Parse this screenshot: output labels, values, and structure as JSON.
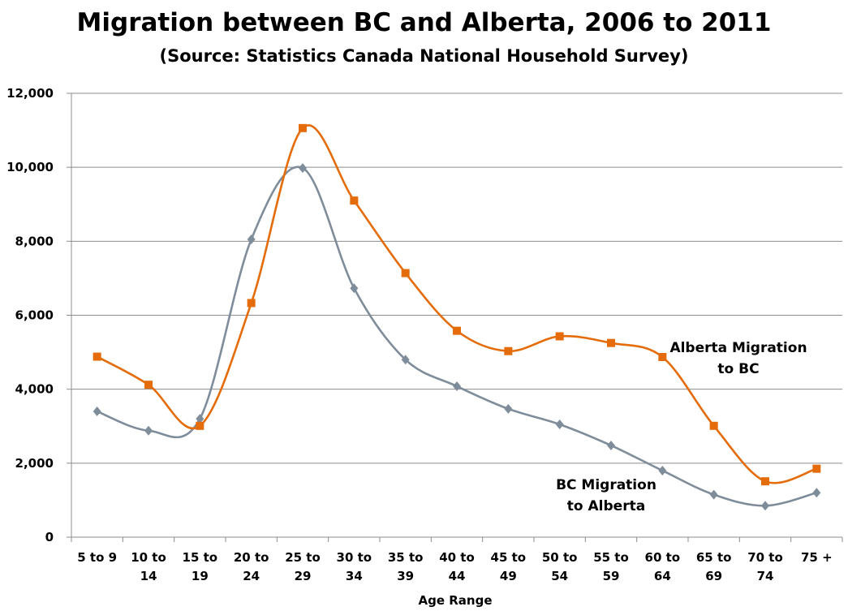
{
  "chart_data": {
    "type": "line",
    "title": "Migration between BC and Alberta, 2006 to 2011",
    "subtitle": "(Source: Statistics Canada National Household Survey)",
    "xlabel": "Age Range",
    "ylabel": "",
    "ylim": [
      0,
      12000
    ],
    "yticks": [
      "0",
      "2,000",
      "4,000",
      "6,000",
      "8,000",
      "10,000",
      "12,000"
    ],
    "grid": true,
    "categories": [
      [
        "5 to 9"
      ],
      [
        "10 to",
        "14"
      ],
      [
        "15 to",
        "19"
      ],
      [
        "20 to",
        "24"
      ],
      [
        "25 to",
        "29"
      ],
      [
        "30 to",
        "34"
      ],
      [
        "35 to",
        "39"
      ],
      [
        "40 to",
        "44"
      ],
      [
        "45 to",
        "49"
      ],
      [
        "50 to",
        "54"
      ],
      [
        "55 to",
        "59"
      ],
      [
        "60 to",
        "64"
      ],
      [
        "65 to",
        "69"
      ],
      [
        "70 to",
        "74"
      ],
      [
        "75 +"
      ]
    ],
    "series": [
      {
        "name": "BC Migration to Alberta",
        "label_lines": [
          "BC Migration",
          "to Alberta"
        ],
        "color": "#7f8c9a",
        "marker": "diamond",
        "values": [
          3400,
          2880,
          3200,
          8050,
          9980,
          6730,
          4800,
          4080,
          3470,
          3050,
          2480,
          1800,
          1150,
          850,
          1200
        ]
      },
      {
        "name": "Alberta Migration to BC",
        "label_lines": [
          "Alberta Migration",
          "to BC"
        ],
        "color": "#e46c0a",
        "marker": "square",
        "values": [
          4880,
          4120,
          3010,
          6330,
          11060,
          9100,
          7140,
          5580,
          5030,
          5430,
          5250,
          4870,
          3010,
          1510,
          1850
        ]
      }
    ]
  }
}
